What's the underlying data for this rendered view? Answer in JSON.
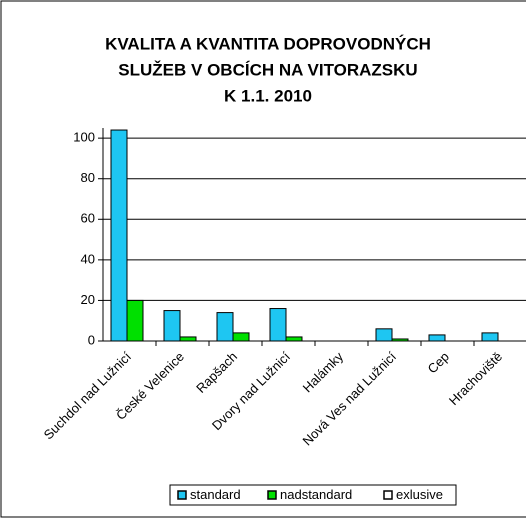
{
  "chart_data": {
    "type": "bar",
    "title": [
      "KVALITA A KVANTITA DOPROVODNÝCH",
      "SLUŽEB V OBCÍCH NA VITORAZSKU",
      "K 1.1. 2010"
    ],
    "categories": [
      "Suchdol nad Lužnicí",
      "České Velenice",
      "Rapšach",
      "Dvory nad Lužnicí",
      "Halámky",
      "Nová Ves nad Lužnicí",
      "Cep",
      "Hrachoviště"
    ],
    "series": [
      {
        "name": "standard",
        "color": "#1ec6f2",
        "values": [
          104,
          15,
          14,
          16,
          0,
          6,
          3,
          4
        ]
      },
      {
        "name": "nadstandard",
        "color": "#00e000",
        "values": [
          20,
          2,
          4,
          2,
          0,
          1,
          0,
          0
        ]
      },
      {
        "name": "exlusive",
        "color": "#ffffff",
        "values": [
          0,
          0,
          0,
          0,
          0,
          0,
          0,
          0
        ]
      }
    ],
    "ylim": [
      0,
      105
    ],
    "yticks": [
      0,
      20,
      40,
      60,
      80,
      100
    ],
    "grid": true,
    "legend": "bottom"
  }
}
